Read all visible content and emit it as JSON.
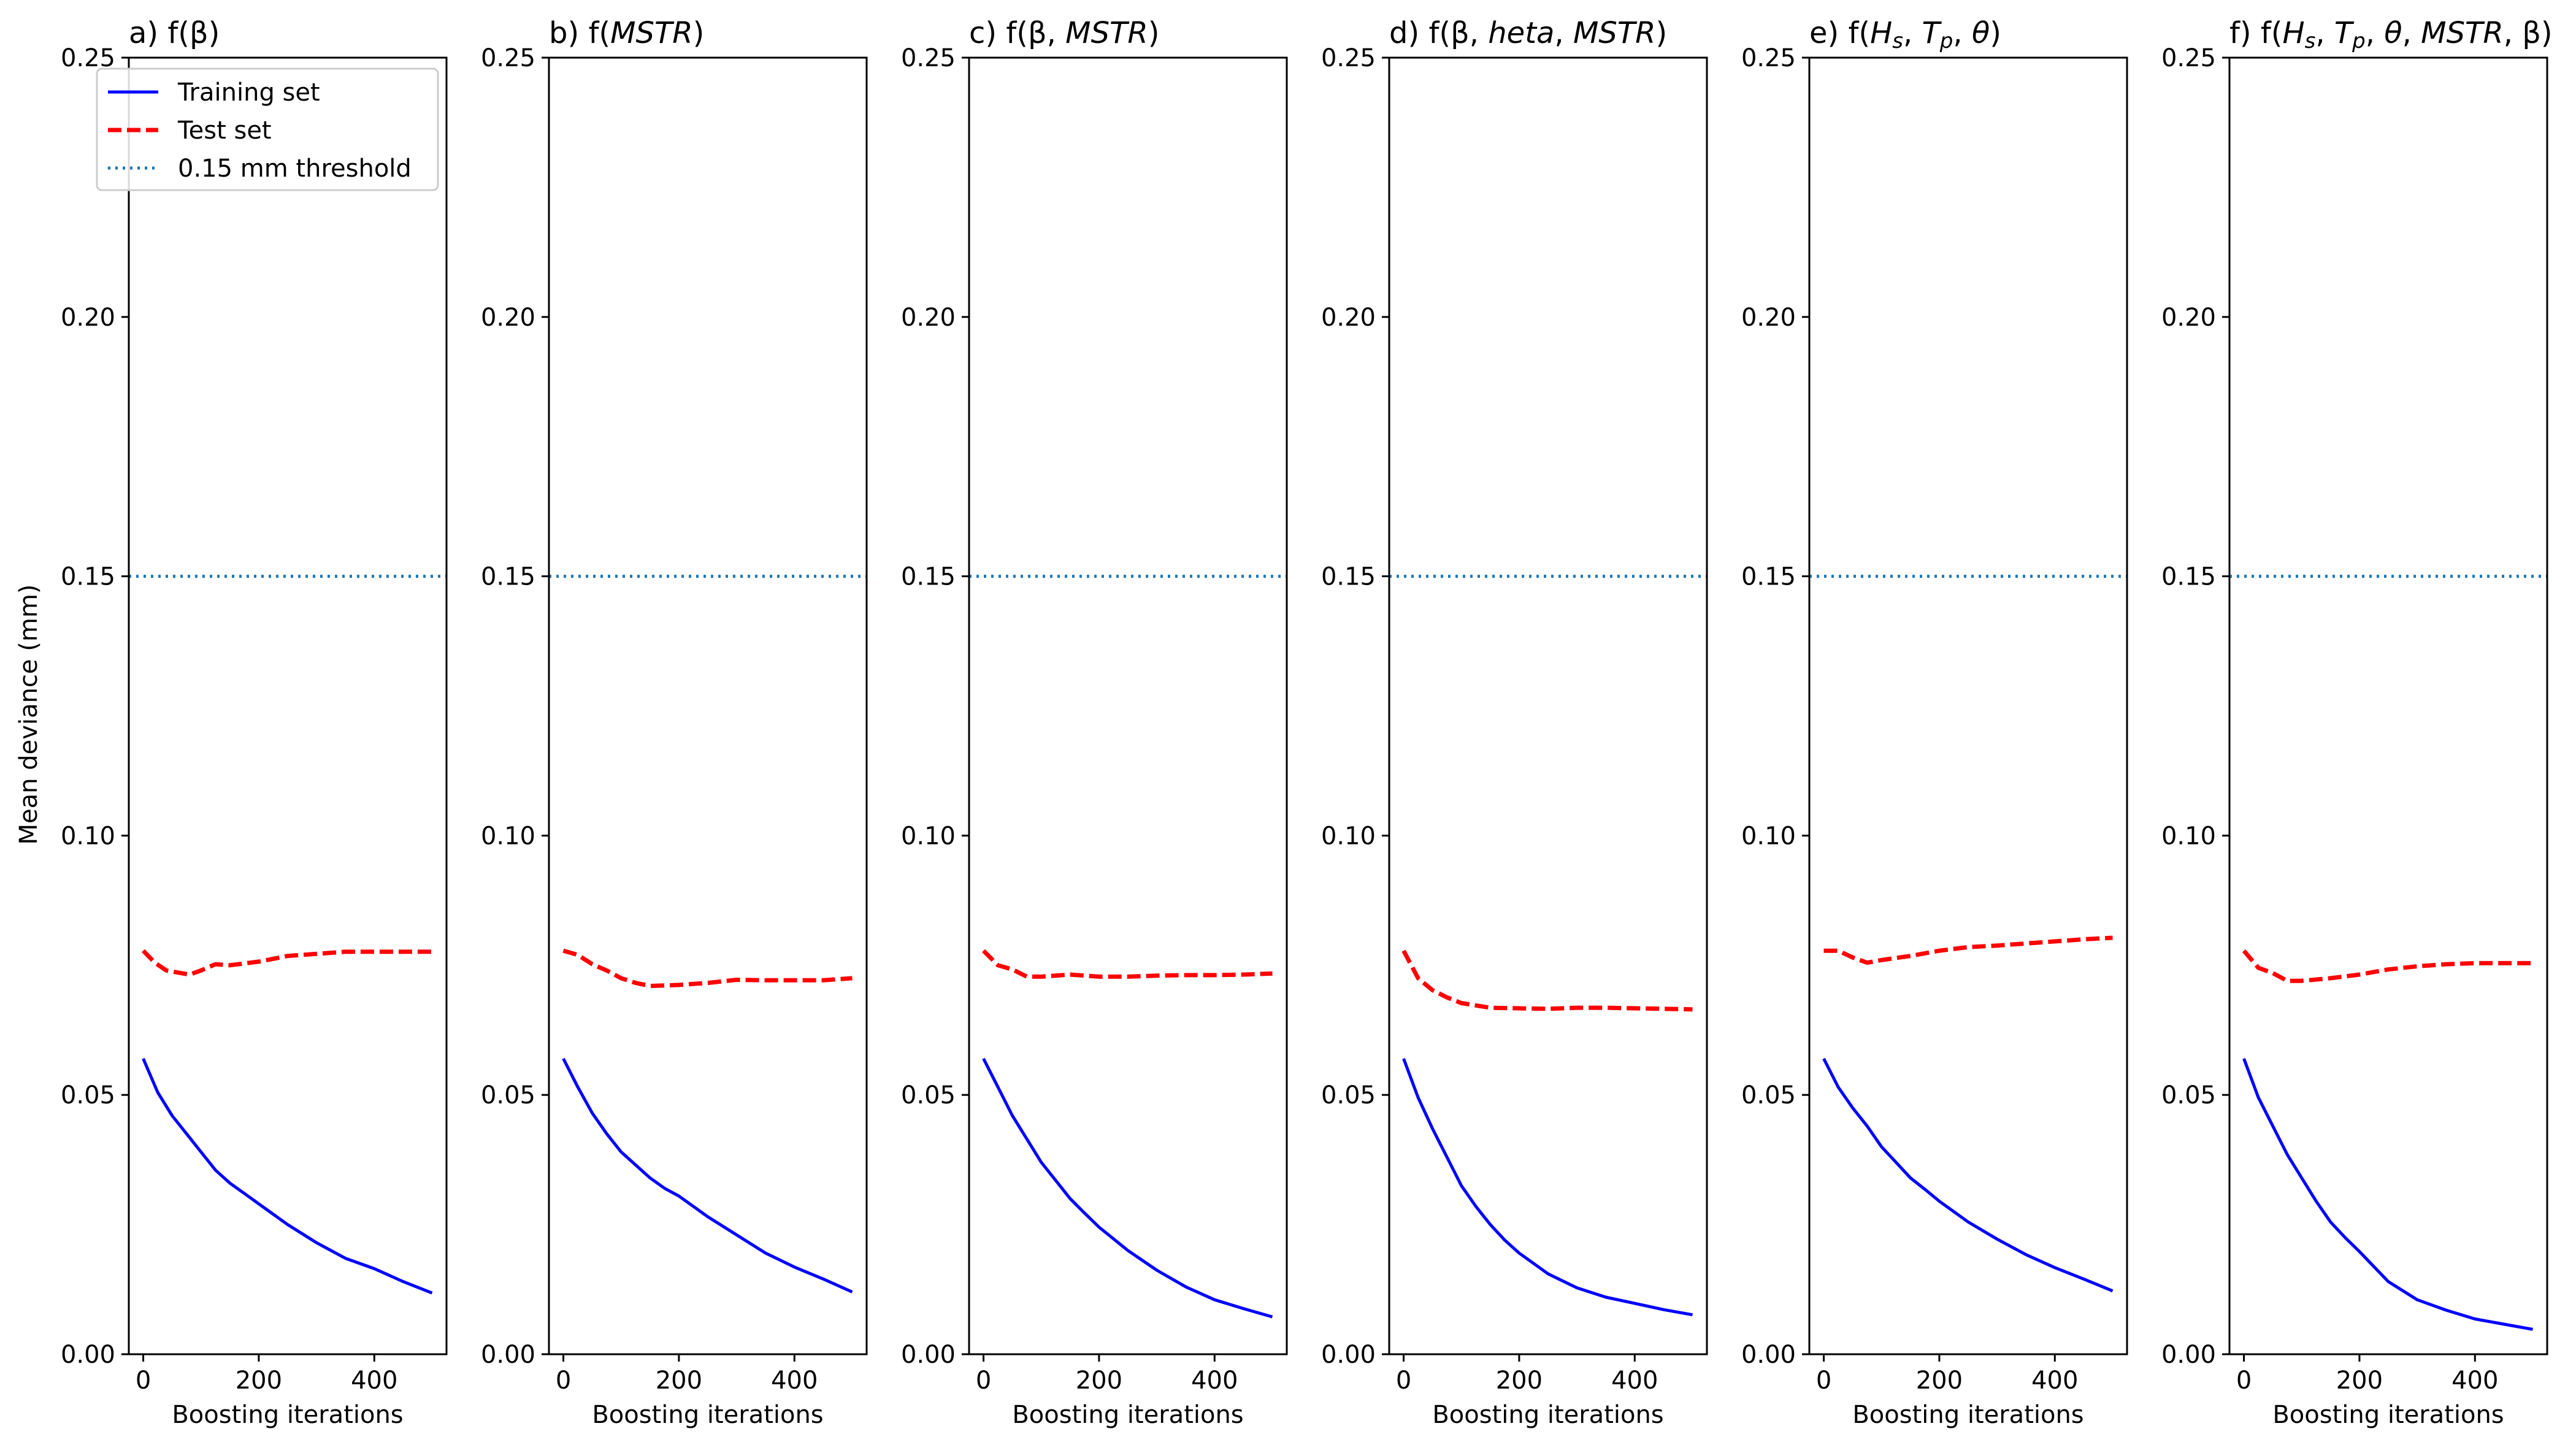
{
  "figure": {
    "ylabel": "Mean deviance (mm)",
    "legend": {
      "placement": "upper-left of panel a",
      "entries": [
        {
          "key": "training",
          "label": "Training set",
          "color": "#0000ff",
          "style": "solid"
        },
        {
          "key": "test",
          "label": "Test set",
          "color": "#ff0000",
          "style": "dashed"
        },
        {
          "key": "threshold",
          "label": "0.15 mm threshold",
          "color": "#1f77b4",
          "style": "dotted"
        }
      ]
    }
  },
  "chart_data": [
    {
      "type": "line",
      "title": "a) f(β)",
      "title_parts": [
        {
          "t": "a) f(β)"
        }
      ],
      "xlabel": "Boosting iterations",
      "ylabel": "Mean deviance (mm)",
      "xlim": [
        -25,
        525
      ],
      "ylim": [
        0,
        0.25
      ],
      "xticks": [
        0,
        200,
        400
      ],
      "yticks": [
        "0.00",
        "0.05",
        "0.10",
        "0.15",
        "0.20",
        "0.25"
      ],
      "threshold": 0.15,
      "series": [
        {
          "name": "Training set",
          "x": [
            0,
            25,
            50,
            75,
            100,
            125,
            150,
            175,
            200,
            250,
            300,
            350,
            400,
            450,
            500
          ],
          "values": [
            0.057,
            0.0505,
            0.046,
            0.0425,
            0.039,
            0.0355,
            0.033,
            0.031,
            0.029,
            0.025,
            0.0215,
            0.0185,
            0.0165,
            0.014,
            0.0118
          ]
        },
        {
          "name": "Test set",
          "x": [
            0,
            20,
            40,
            80,
            100,
            125,
            150,
            200,
            250,
            300,
            350,
            400,
            450,
            500
          ],
          "values": [
            0.0778,
            0.0755,
            0.074,
            0.0732,
            0.074,
            0.0752,
            0.075,
            0.0757,
            0.0768,
            0.0772,
            0.0776,
            0.0776,
            0.0776,
            0.0776
          ]
        }
      ]
    },
    {
      "type": "line",
      "title": "b) f(MSTR)",
      "title_parts": [
        {
          "t": "b) f("
        },
        {
          "t": "MSTR",
          "i": true
        },
        {
          "t": ")"
        }
      ],
      "xlabel": "Boosting iterations",
      "ylabel": "",
      "xlim": [
        -25,
        525
      ],
      "ylim": [
        0,
        0.25
      ],
      "xticks": [
        0,
        200,
        400
      ],
      "yticks": [
        "0.00",
        "0.05",
        "0.10",
        "0.15",
        "0.20",
        "0.25"
      ],
      "threshold": 0.15,
      "series": [
        {
          "name": "Training set",
          "x": [
            0,
            25,
            50,
            75,
            100,
            125,
            150,
            175,
            200,
            250,
            300,
            350,
            400,
            450,
            500
          ],
          "values": [
            0.057,
            0.0515,
            0.0465,
            0.0425,
            0.039,
            0.0365,
            0.034,
            0.032,
            0.0305,
            0.0265,
            0.023,
            0.0195,
            0.0168,
            0.0145,
            0.012
          ]
        },
        {
          "name": "Test set",
          "x": [
            0,
            25,
            50,
            75,
            100,
            125,
            150,
            200,
            250,
            300,
            350,
            400,
            450,
            500
          ],
          "values": [
            0.0778,
            0.077,
            0.0752,
            0.074,
            0.0725,
            0.0716,
            0.071,
            0.0712,
            0.0716,
            0.0722,
            0.0721,
            0.0721,
            0.0721,
            0.0725
          ]
        }
      ]
    },
    {
      "type": "line",
      "title": "c) f(β, MSTR)",
      "title_parts": [
        {
          "t": "c) f(β, "
        },
        {
          "t": "MSTR",
          "i": true
        },
        {
          "t": ")"
        }
      ],
      "xlabel": "Boosting iterations",
      "ylabel": "",
      "xlim": [
        -25,
        525
      ],
      "ylim": [
        0,
        0.25
      ],
      "xticks": [
        0,
        200,
        400
      ],
      "yticks": [
        "0.00",
        "0.05",
        "0.10",
        "0.15",
        "0.20",
        "0.25"
      ],
      "threshold": 0.15,
      "series": [
        {
          "name": "Training set",
          "x": [
            0,
            25,
            50,
            75,
            100,
            125,
            150,
            175,
            200,
            250,
            300,
            350,
            400,
            450,
            500
          ],
          "values": [
            0.057,
            0.0515,
            0.046,
            0.0415,
            0.037,
            0.0335,
            0.03,
            0.0272,
            0.0245,
            0.02,
            0.0162,
            0.013,
            0.0105,
            0.0088,
            0.0072
          ]
        },
        {
          "name": "Test set",
          "x": [
            0,
            25,
            50,
            75,
            100,
            150,
            200,
            250,
            300,
            350,
            400,
            450,
            500
          ],
          "values": [
            0.0778,
            0.075,
            0.0742,
            0.0728,
            0.0728,
            0.0732,
            0.0728,
            0.0728,
            0.073,
            0.0731,
            0.0731,
            0.0732,
            0.0734
          ]
        }
      ]
    },
    {
      "type": "line",
      "title": "d) f(β, heta, MSTR)",
      "title_parts": [
        {
          "t": "d) f(β, "
        },
        {
          "t": "heta",
          "i": true
        },
        {
          "t": ", "
        },
        {
          "t": "MSTR",
          "i": true
        },
        {
          "t": ")"
        }
      ],
      "xlabel": "Boosting iterations",
      "ylabel": "",
      "xlim": [
        -25,
        525
      ],
      "ylim": [
        0,
        0.25
      ],
      "xticks": [
        0,
        200,
        400
      ],
      "yticks": [
        "0.00",
        "0.05",
        "0.10",
        "0.15",
        "0.20",
        "0.25"
      ],
      "threshold": 0.15,
      "series": [
        {
          "name": "Training set",
          "x": [
            0,
            25,
            50,
            75,
            100,
            125,
            150,
            175,
            200,
            250,
            300,
            350,
            400,
            450,
            500
          ],
          "values": [
            0.057,
            0.0495,
            0.0435,
            0.038,
            0.0325,
            0.0285,
            0.025,
            0.022,
            0.0195,
            0.0155,
            0.0128,
            0.011,
            0.0098,
            0.0086,
            0.0076
          ]
        },
        {
          "name": "Test set",
          "x": [
            0,
            25,
            50,
            75,
            100,
            150,
            200,
            250,
            300,
            350,
            400,
            450,
            500
          ],
          "values": [
            0.0778,
            0.0725,
            0.0702,
            0.0688,
            0.0677,
            0.0668,
            0.0667,
            0.0666,
            0.0668,
            0.0668,
            0.0667,
            0.0666,
            0.0665
          ]
        }
      ]
    },
    {
      "type": "line",
      "title": "e) f(Hs, Tp, θ)",
      "title_parts": [
        {
          "t": "e) f("
        },
        {
          "t": "H",
          "i": true
        },
        {
          "t": "s",
          "i": true,
          "sub": true
        },
        {
          "t": ", "
        },
        {
          "t": "T",
          "i": true
        },
        {
          "t": "p",
          "i": true,
          "sub": true
        },
        {
          "t": ", "
        },
        {
          "t": "θ",
          "i": true
        },
        {
          "t": ")"
        }
      ],
      "xlabel": "Boosting iterations",
      "ylabel": "",
      "xlim": [
        -25,
        525
      ],
      "ylim": [
        0,
        0.25
      ],
      "xticks": [
        0,
        200,
        400
      ],
      "yticks": [
        "0.00",
        "0.05",
        "0.10",
        "0.15",
        "0.20",
        "0.25"
      ],
      "threshold": 0.15,
      "series": [
        {
          "name": "Training set",
          "x": [
            0,
            25,
            50,
            75,
            100,
            125,
            150,
            175,
            200,
            250,
            300,
            350,
            400,
            450,
            500
          ],
          "values": [
            0.057,
            0.0515,
            0.0475,
            0.044,
            0.04,
            0.037,
            0.034,
            0.0318,
            0.0295,
            0.0255,
            0.0222,
            0.0192,
            0.0167,
            0.0145,
            0.0122
          ]
        },
        {
          "name": "Test set",
          "x": [
            0,
            25,
            50,
            75,
            100,
            150,
            200,
            250,
            300,
            350,
            400,
            450,
            500
          ],
          "values": [
            0.0778,
            0.0778,
            0.0765,
            0.0755,
            0.076,
            0.0768,
            0.0778,
            0.0785,
            0.0788,
            0.0792,
            0.0796,
            0.08,
            0.0803
          ]
        }
      ]
    },
    {
      "type": "line",
      "title": "f) f(Hs, Tp, θ, MSTR, β)",
      "title_parts": [
        {
          "t": "f) f("
        },
        {
          "t": "H",
          "i": true
        },
        {
          "t": "s",
          "i": true,
          "sub": true
        },
        {
          "t": ", "
        },
        {
          "t": "T",
          "i": true
        },
        {
          "t": "p",
          "i": true,
          "sub": true
        },
        {
          "t": ", "
        },
        {
          "t": "θ",
          "i": true
        },
        {
          "t": ", "
        },
        {
          "t": "MSTR",
          "i": true
        },
        {
          "t": ", β)"
        }
      ],
      "xlabel": "Boosting iterations",
      "ylabel": "",
      "xlim": [
        -25,
        525
      ],
      "ylim": [
        0,
        0.25
      ],
      "xticks": [
        0,
        200,
        400
      ],
      "yticks": [
        "0.00",
        "0.05",
        "0.10",
        "0.15",
        "0.20",
        "0.25"
      ],
      "threshold": 0.15,
      "series": [
        {
          "name": "Training set",
          "x": [
            0,
            25,
            50,
            75,
            100,
            125,
            150,
            175,
            200,
            250,
            300,
            350,
            400,
            450,
            500
          ],
          "values": [
            0.057,
            0.0495,
            0.044,
            0.0385,
            0.034,
            0.0295,
            0.0255,
            0.0225,
            0.0198,
            0.014,
            0.0105,
            0.0085,
            0.0068,
            0.0058,
            0.0048
          ]
        },
        {
          "name": "Test set",
          "x": [
            0,
            25,
            50,
            75,
            100,
            150,
            200,
            250,
            300,
            350,
            400,
            450,
            500
          ],
          "values": [
            0.0778,
            0.0745,
            0.0735,
            0.072,
            0.072,
            0.0725,
            0.0732,
            0.0742,
            0.0748,
            0.0752,
            0.0754,
            0.0754,
            0.0754
          ]
        }
      ]
    }
  ]
}
